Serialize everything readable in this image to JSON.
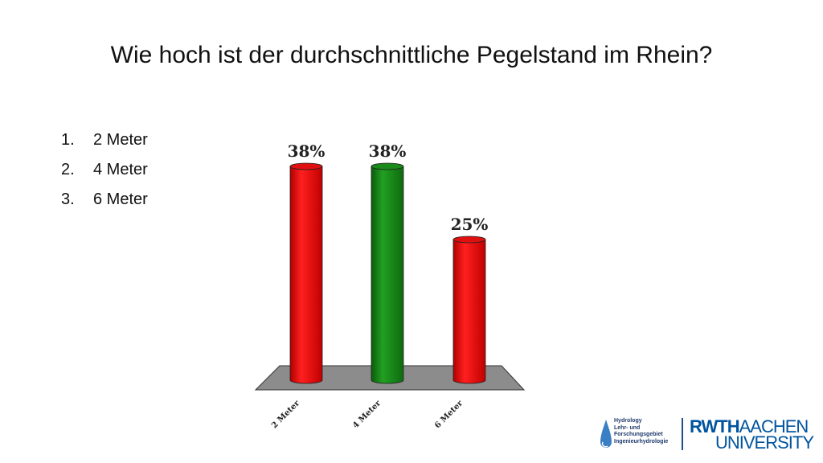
{
  "title": "Wie hoch ist der durchschnittliche Pegelstand im Rhein?",
  "answers": [
    {
      "num": "1.",
      "label": "2 Meter"
    },
    {
      "num": "2.",
      "label": "4 Meter"
    },
    {
      "num": "3.",
      "label": "6 Meter"
    }
  ],
  "chart_data": {
    "type": "bar",
    "categories": [
      "2 Meter",
      "4 Meter",
      "6 Meter"
    ],
    "values": [
      38,
      38,
      25
    ],
    "data_labels": [
      "38%",
      "38%",
      "25%"
    ],
    "colors": [
      "#e01010",
      "#1a8a1a",
      "#e01010"
    ],
    "ylim": [
      0,
      40
    ],
    "grid": false,
    "legend": "none"
  },
  "logos": {
    "hydrology_lines": [
      "Hydrology",
      "Lehr- und",
      "Forschungsgebiet",
      "Ingenieurhydrologie"
    ],
    "rwth_bold": "RWTH",
    "rwth_thin": "AACHEN",
    "rwth_line2": "UNIVERSITY"
  }
}
